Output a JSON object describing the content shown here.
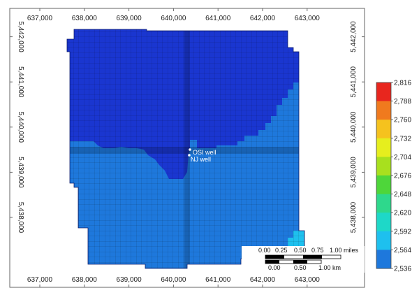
{
  "map": {
    "x_ticks": [
      "637,000",
      "638,000",
      "639,000",
      "640,000",
      "641,000",
      "642,000",
      "643,000"
    ],
    "y_ticks": [
      "5,442,000",
      "5,441,000",
      "5,440,000",
      "5,439,000",
      "5,438,000"
    ],
    "x_tick_values": [
      637000,
      638000,
      639000,
      640000,
      641000,
      642000,
      643000
    ],
    "y_tick_values": [
      5442000,
      5441000,
      5440000,
      5439000,
      5438000
    ],
    "wells": [
      {
        "label": "OSI well"
      },
      {
        "label": "NJ well"
      }
    ],
    "scale_bar": {
      "miles_labels": [
        "0.00",
        "0.25",
        "0.50",
        "0.75",
        "1.00 miles"
      ],
      "km_labels": [
        "0.00",
        "0.50",
        "1.00 km"
      ]
    }
  },
  "legend": {
    "labels": [
      "2,816",
      "2,788",
      "2,760",
      "2,732",
      "2,704",
      "2,676",
      "2,648",
      "2,620",
      "2,592",
      "2,564",
      "2,536"
    ],
    "colors": [
      "#e8261e",
      "#f07a1e",
      "#f5c21e",
      "#e6ee1e",
      "#a8e01e",
      "#4ed63a",
      "#2ed88c",
      "#1ed8c8",
      "#1ec0ee",
      "#1e78dc",
      "#1a36d0"
    ]
  },
  "colors": {
    "zone_low": "#1a36d0",
    "zone_mid": "#1e78dc",
    "zone_high": "#1ec0ee"
  }
}
